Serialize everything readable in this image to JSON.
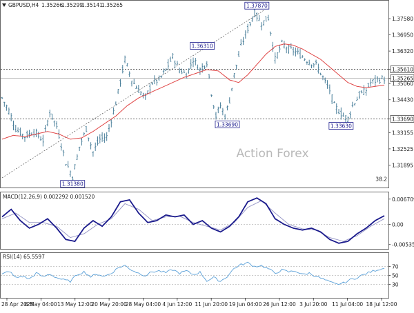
{
  "header": {
    "symbol_label": "GBPUSD,H4",
    "ohlc_values": [
      "1.35266",
      "1.35299",
      "1.35141",
      "1.35265"
    ]
  },
  "watermark": "Action Forex",
  "colors": {
    "bar": "#4a7f9a",
    "ma": "#e04545",
    "macd_line": "#1a1a8c",
    "macd_signal": "#9a9ac8",
    "rsi_line": "#5aa0d8",
    "dash": "#333333",
    "grid_dot": "#bbbbbb",
    "box_border": "#1a1a8c"
  },
  "chart_data": [
    {
      "type": "line",
      "name": "price",
      "title": "GBPUSD,H4",
      "ohlc_last": {
        "open": 1.35266,
        "high": 1.35299,
        "low": 1.35141,
        "close": 1.35265
      },
      "ylim": [
        1.3105,
        1.3825
      ],
      "y_ticks": [
        "1.37580",
        "1.36950",
        "1.36320",
        "1.35610",
        "1.35265",
        "1.35060",
        "1.34430",
        "1.33690",
        "1.33155",
        "1.32525",
        "1.31895"
      ],
      "x_tick_labels": [
        "28 Apr 2025",
        "6 May 04:00",
        "13 May 12:00",
        "20 May 20:00",
        "28 May 04:00",
        "4 Jun 12:00",
        "11 Jun 20:00",
        "19 Jun 04:00",
        "26 Jun 12:00",
        "3 Jul 20:00",
        "11 Jul 04:00",
        "18 Jul 12:00"
      ],
      "horizontal_levels": [
        1.3561,
        1.3369
      ],
      "current_price": 1.35265,
      "annotations": [
        {
          "text": "1.37870",
          "value": 1.3787,
          "kind": "high"
        },
        {
          "text": "1.36310",
          "value": 1.3631,
          "kind": "high"
        },
        {
          "text": "1.33690",
          "value": 1.3369,
          "kind": "low"
        },
        {
          "text": "1.33630",
          "value": 1.3363,
          "kind": "low"
        },
        {
          "text": "1.31380",
          "value": 1.3138,
          "kind": "low"
        }
      ],
      "fib_label": "38.2",
      "price_path": [
        [
          0,
          1.345
        ],
        [
          3,
          1.34
        ],
        [
          6,
          1.333
        ],
        [
          10,
          1.33
        ],
        [
          14,
          1.332
        ],
        [
          18,
          1.3285
        ],
        [
          21,
          1.3395
        ],
        [
          24,
          1.334
        ],
        [
          28,
          1.32
        ],
        [
          31,
          1.3145
        ],
        [
          34,
          1.326
        ],
        [
          37,
          1.333
        ],
        [
          40,
          1.324
        ],
        [
          43,
          1.329
        ],
        [
          46,
          1.33
        ],
        [
          50,
          1.343
        ],
        [
          54,
          1.36
        ],
        [
          57,
          1.352
        ],
        [
          60,
          1.348
        ],
        [
          63,
          1.345
        ],
        [
          66,
          1.351
        ],
        [
          69,
          1.352
        ],
        [
          72,
          1.356
        ],
        [
          75,
          1.361
        ],
        [
          78,
          1.356
        ],
        [
          81,
          1.354
        ],
        [
          84,
          1.36
        ],
        [
          87,
          1.356
        ],
        [
          90,
          1.359
        ],
        [
          92,
          1.347
        ],
        [
          94,
          1.338
        ],
        [
          96,
          1.342
        ],
        [
          98,
          1.338
        ],
        [
          100,
          1.344
        ],
        [
          102,
          1.354
        ],
        [
          105,
          1.365
        ],
        [
          108,
          1.372
        ],
        [
          111,
          1.378
        ],
        [
          114,
          1.374
        ],
        [
          117,
          1.376
        ],
        [
          120,
          1.36
        ],
        [
          123,
          1.366
        ],
        [
          126,
          1.364
        ],
        [
          129,
          1.363
        ],
        [
          132,
          1.361
        ],
        [
          135,
          1.359
        ],
        [
          138,
          1.358
        ],
        [
          141,
          1.353
        ],
        [
          144,
          1.348
        ],
        [
          146,
          1.342
        ],
        [
          148,
          1.34
        ],
        [
          150,
          1.338
        ],
        [
          152,
          1.337
        ],
        [
          154,
          1.342
        ],
        [
          157,
          1.346
        ],
        [
          160,
          1.348
        ],
        [
          162,
          1.351
        ],
        [
          165,
          1.352
        ],
        [
          168,
          1.3526
        ]
      ],
      "ma_path": [
        [
          0,
          1.329
        ],
        [
          5,
          1.3305
        ],
        [
          10,
          1.33
        ],
        [
          15,
          1.331
        ],
        [
          20,
          1.332
        ],
        [
          25,
          1.331
        ],
        [
          30,
          1.329
        ],
        [
          35,
          1.3295
        ],
        [
          40,
          1.332
        ],
        [
          45,
          1.335
        ],
        [
          50,
          1.338
        ],
        [
          55,
          1.342
        ],
        [
          60,
          1.345
        ],
        [
          65,
          1.347
        ],
        [
          70,
          1.349
        ],
        [
          75,
          1.351
        ],
        [
          80,
          1.353
        ],
        [
          85,
          1.3545
        ],
        [
          90,
          1.356
        ],
        [
          95,
          1.3555
        ],
        [
          100,
          1.352
        ],
        [
          104,
          1.351
        ],
        [
          108,
          1.354
        ],
        [
          112,
          1.358
        ],
        [
          116,
          1.362
        ],
        [
          120,
          1.365
        ],
        [
          124,
          1.366
        ],
        [
          128,
          1.3655
        ],
        [
          132,
          1.364
        ],
        [
          136,
          1.362
        ],
        [
          140,
          1.36
        ],
        [
          144,
          1.357
        ],
        [
          148,
          1.354
        ],
        [
          152,
          1.351
        ],
        [
          156,
          1.3495
        ],
        [
          160,
          1.349
        ],
        [
          164,
          1.3495
        ],
        [
          168,
          1.35
        ]
      ]
    },
    {
      "type": "line",
      "name": "macd",
      "title": "MACD(12,26,9) 0.002292 0.001520",
      "ylim": [
        -0.0065,
        0.0085
      ],
      "y_ticks": [
        "0.006709",
        "0.00",
        "-0.00535"
      ],
      "zero_line": 0,
      "macd_path": [
        [
          0,
          0.002
        ],
        [
          4,
          0.004
        ],
        [
          8,
          0.001
        ],
        [
          12,
          -0.001
        ],
        [
          16,
          0.0
        ],
        [
          20,
          0.0015
        ],
        [
          24,
          -0.001
        ],
        [
          28,
          -0.004
        ],
        [
          32,
          -0.0045
        ],
        [
          36,
          -0.001
        ],
        [
          40,
          0.001
        ],
        [
          44,
          -0.0005
        ],
        [
          48,
          0.002
        ],
        [
          52,
          0.006
        ],
        [
          56,
          0.0065
        ],
        [
          60,
          0.003
        ],
        [
          64,
          0.0005
        ],
        [
          68,
          0.001
        ],
        [
          72,
          0.0025
        ],
        [
          76,
          0.002
        ],
        [
          80,
          0.0025
        ],
        [
          84,
          0.0
        ],
        [
          88,
          0.001
        ],
        [
          92,
          -0.001
        ],
        [
          96,
          -0.002
        ],
        [
          100,
          -0.0005
        ],
        [
          104,
          0.002
        ],
        [
          108,
          0.006
        ],
        [
          112,
          0.007
        ],
        [
          116,
          0.0055
        ],
        [
          120,
          0.0015
        ],
        [
          124,
          0.0
        ],
        [
          128,
          -0.001
        ],
        [
          132,
          -0.0015
        ],
        [
          136,
          -0.001
        ],
        [
          140,
          -0.002
        ],
        [
          144,
          -0.004
        ],
        [
          148,
          -0.005
        ],
        [
          152,
          -0.0045
        ],
        [
          156,
          -0.0025
        ],
        [
          160,
          -0.001
        ],
        [
          164,
          0.001
        ],
        [
          168,
          0.0023
        ]
      ],
      "signal_path": [
        [
          0,
          0.0015
        ],
        [
          6,
          0.003
        ],
        [
          12,
          0.0005
        ],
        [
          18,
          0.0005
        ],
        [
          24,
          -0.0005
        ],
        [
          30,
          -0.0035
        ],
        [
          36,
          -0.0025
        ],
        [
          42,
          0.0
        ],
        [
          48,
          0.0015
        ],
        [
          54,
          0.0055
        ],
        [
          60,
          0.004
        ],
        [
          66,
          0.001
        ],
        [
          72,
          0.002
        ],
        [
          78,
          0.0022
        ],
        [
          84,
          0.0005
        ],
        [
          90,
          -0.0005
        ],
        [
          96,
          -0.0015
        ],
        [
          102,
          0.0005
        ],
        [
          108,
          0.0045
        ],
        [
          114,
          0.0063
        ],
        [
          120,
          0.003
        ],
        [
          126,
          0.0
        ],
        [
          132,
          -0.0012
        ],
        [
          138,
          -0.0015
        ],
        [
          144,
          -0.0035
        ],
        [
          150,
          -0.0045
        ],
        [
          156,
          -0.003
        ],
        [
          162,
          -0.0005
        ],
        [
          168,
          0.0015
        ]
      ]
    },
    {
      "type": "line",
      "name": "rsi",
      "title": "RSI(14) 65.5597",
      "ylim": [
        0,
        100
      ],
      "y_ticks": [
        "70",
        "50",
        "30"
      ],
      "levels": [
        70,
        50,
        30
      ],
      "rsi_path": [
        [
          0,
          52
        ],
        [
          3,
          60
        ],
        [
          6,
          45
        ],
        [
          9,
          48
        ],
        [
          12,
          42
        ],
        [
          15,
          55
        ],
        [
          18,
          47
        ],
        [
          21,
          53
        ],
        [
          24,
          45
        ],
        [
          27,
          40
        ],
        [
          30,
          37
        ],
        [
          33,
          52
        ],
        [
          36,
          58
        ],
        [
          39,
          47
        ],
        [
          42,
          53
        ],
        [
          45,
          48
        ],
        [
          48,
          55
        ],
        [
          51,
          67
        ],
        [
          54,
          72
        ],
        [
          57,
          62
        ],
        [
          60,
          55
        ],
        [
          63,
          50
        ],
        [
          66,
          58
        ],
        [
          69,
          60
        ],
        [
          72,
          56
        ],
        [
          75,
          63
        ],
        [
          78,
          55
        ],
        [
          81,
          60
        ],
        [
          84,
          52
        ],
        [
          87,
          57
        ],
        [
          90,
          38
        ],
        [
          93,
          45
        ],
        [
          96,
          37
        ],
        [
          99,
          48
        ],
        [
          102,
          66
        ],
        [
          105,
          74
        ],
        [
          108,
          78
        ],
        [
          111,
          70
        ],
        [
          114,
          72
        ],
        [
          117,
          65
        ],
        [
          120,
          55
        ],
        [
          123,
          62
        ],
        [
          126,
          58
        ],
        [
          129,
          60
        ],
        [
          132,
          52
        ],
        [
          135,
          55
        ],
        [
          138,
          48
        ],
        [
          141,
          42
        ],
        [
          144,
          35
        ],
        [
          147,
          30
        ],
        [
          150,
          33
        ],
        [
          153,
          40
        ],
        [
          156,
          45
        ],
        [
          159,
          52
        ],
        [
          162,
          58
        ],
        [
          165,
          63
        ],
        [
          168,
          65.5597
        ]
      ]
    }
  ]
}
